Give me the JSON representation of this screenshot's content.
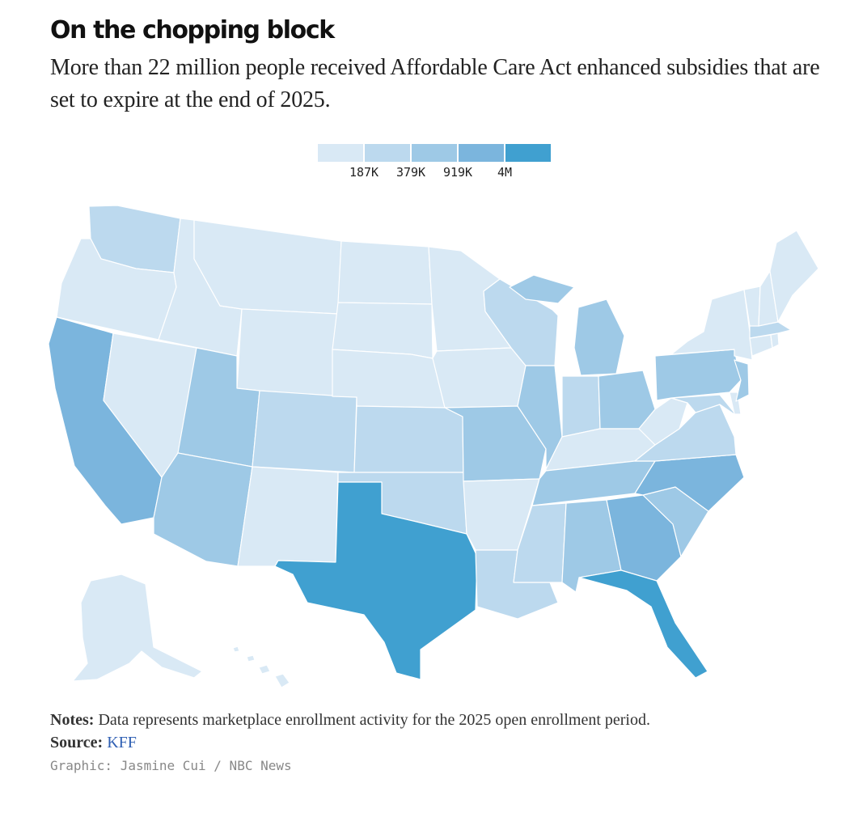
{
  "header": {
    "title": "On the chopping block",
    "subtitle": "More than 22 million people received Affordable Care Act enhanced subsidies that are set to expire at the end of 2025."
  },
  "legend": {
    "colors": [
      "#d9e9f5",
      "#bcd9ee",
      "#9ec9e6",
      "#7bb5dd",
      "#40a0d0"
    ],
    "ticks": [
      "187K",
      "379K",
      "919K",
      "4M"
    ]
  },
  "map": {
    "type": "choropleth",
    "measure": "Marketplace enrollment, 2025 open enrollment period",
    "classes": [
      {
        "class": 1,
        "range": "< 187K",
        "color": "#d9e9f5"
      },
      {
        "class": 2,
        "range": "187K – 379K",
        "color": "#bcd9ee"
      },
      {
        "class": 3,
        "range": "379K – 919K",
        "color": "#9ec9e6"
      },
      {
        "class": 4,
        "range": "919K – 4M",
        "color": "#7bb5dd"
      },
      {
        "class": 5,
        "range": "> 4M",
        "color": "#40a0d0"
      }
    ],
    "states": [
      {
        "name": "Washington",
        "class": 2
      },
      {
        "name": "Oregon",
        "class": 1
      },
      {
        "name": "California",
        "class": 4
      },
      {
        "name": "Nevada",
        "class": 1
      },
      {
        "name": "Idaho",
        "class": 1
      },
      {
        "name": "Montana",
        "class": 1
      },
      {
        "name": "Wyoming",
        "class": 1
      },
      {
        "name": "Utah",
        "class": 3
      },
      {
        "name": "Arizona",
        "class": 3
      },
      {
        "name": "Colorado",
        "class": 2
      },
      {
        "name": "New Mexico",
        "class": 1
      },
      {
        "name": "North Dakota",
        "class": 1
      },
      {
        "name": "South Dakota",
        "class": 1
      },
      {
        "name": "Nebraska",
        "class": 1
      },
      {
        "name": "Kansas",
        "class": 2
      },
      {
        "name": "Oklahoma",
        "class": 2
      },
      {
        "name": "Texas",
        "class": 5
      },
      {
        "name": "Minnesota",
        "class": 1
      },
      {
        "name": "Iowa",
        "class": 1
      },
      {
        "name": "Missouri",
        "class": 3
      },
      {
        "name": "Arkansas",
        "class": 1
      },
      {
        "name": "Louisiana",
        "class": 2
      },
      {
        "name": "Wisconsin",
        "class": 2
      },
      {
        "name": "Illinois",
        "class": 3
      },
      {
        "name": "Michigan",
        "class": 3
      },
      {
        "name": "Indiana",
        "class": 2
      },
      {
        "name": "Ohio",
        "class": 3
      },
      {
        "name": "Kentucky",
        "class": 1
      },
      {
        "name": "Tennessee",
        "class": 3
      },
      {
        "name": "Mississippi",
        "class": 2
      },
      {
        "name": "Alabama",
        "class": 3
      },
      {
        "name": "Georgia",
        "class": 4
      },
      {
        "name": "Florida",
        "class": 5
      },
      {
        "name": "South Carolina",
        "class": 3
      },
      {
        "name": "North Carolina",
        "class": 4
      },
      {
        "name": "Virginia",
        "class": 2
      },
      {
        "name": "West Virginia",
        "class": 1
      },
      {
        "name": "Maryland",
        "class": 2
      },
      {
        "name": "Delaware",
        "class": 1
      },
      {
        "name": "Pennsylvania",
        "class": 3
      },
      {
        "name": "New Jersey",
        "class": 3
      },
      {
        "name": "New York",
        "class": 1
      },
      {
        "name": "Connecticut",
        "class": 1
      },
      {
        "name": "Rhode Island",
        "class": 1
      },
      {
        "name": "Massachusetts",
        "class": 2
      },
      {
        "name": "Vermont",
        "class": 1
      },
      {
        "name": "New Hampshire",
        "class": 1
      },
      {
        "name": "Maine",
        "class": 1
      },
      {
        "name": "Alaska",
        "class": 1
      },
      {
        "name": "Hawaii",
        "class": 1
      }
    ]
  },
  "footer": {
    "notes_label": "Notes:",
    "notes_text": " Data represents marketplace enrollment activity for the 2025 open enrollment period.",
    "source_label": "Source:",
    "source_link": "KFF",
    "credit": "Graphic: Jasmine Cui / NBC News"
  }
}
